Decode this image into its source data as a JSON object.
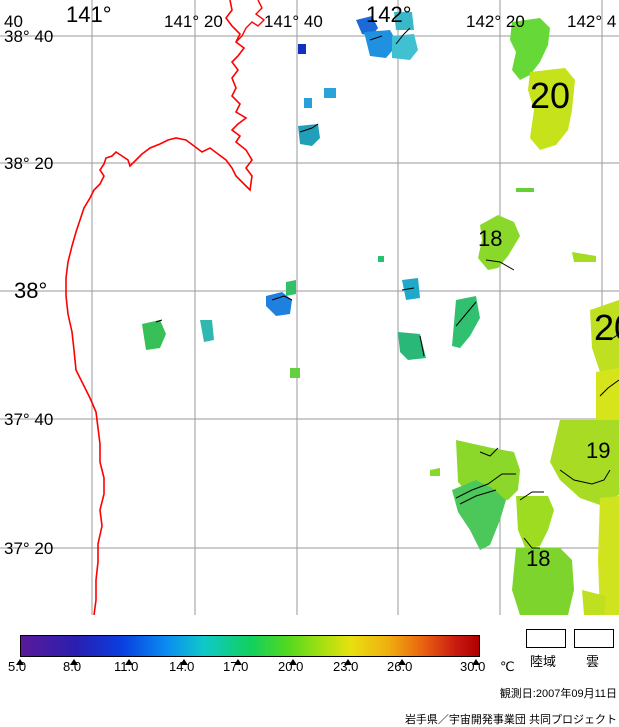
{
  "map": {
    "lat_labels": [
      "38° 40",
      "38° 20",
      "38°",
      "37° 40",
      "37° 20"
    ],
    "lon_labels": [
      "40",
      "141°",
      "141° 20",
      "141° 40",
      "142°",
      "142° 20",
      "142° 4"
    ],
    "isotherm_labels": [
      "20",
      "18",
      "20",
      "19",
      "18"
    ]
  },
  "legend": {
    "ticks": [
      "5.0",
      "8.0",
      "11.0",
      "14.0",
      "17.0",
      "20.0",
      "23.0",
      "26.0",
      "30.0"
    ],
    "unit": "℃",
    "key_land": "陸域",
    "key_cloud": "雲",
    "observation_date": "観測日:2007年09月11日",
    "credit": "岩手県／宇宙開発事業団 共同プロジェクト"
  }
}
